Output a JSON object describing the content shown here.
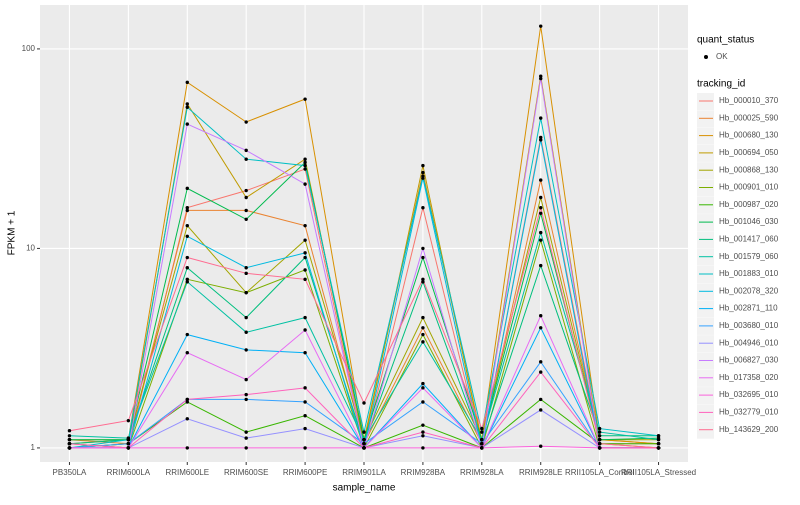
{
  "chart_data": {
    "type": "line",
    "log_y": true,
    "grid": true,
    "x_label": "sample_name",
    "y_label": "FPKM + 1",
    "categories": [
      "PB350LA",
      "RRIM600LA",
      "RRIM600LE",
      "RRIM600SE",
      "RRIM600PE",
      "RRIM901LA",
      "RRIM928BA",
      "RRIM928LA",
      "RRIM928LE",
      "RRII105LA_Control",
      "RRII105LA_Stressed"
    ],
    "ylim": [
      0.85,
      166
    ],
    "yticks": [
      1,
      10,
      100
    ],
    "point_legend_title": "quant_status",
    "point_legend_label": "OK",
    "legend_title": "tracking_id",
    "series": [
      {
        "name": "Hb_000010_370",
        "color": "#F8766D",
        "values": [
          1.05,
          1.0,
          16,
          19.5,
          25,
          1.0,
          16,
          1.0,
          36,
          1.05,
          1.05
        ]
      },
      {
        "name": "Hb_000025_590",
        "color": "#EA8331",
        "values": [
          1.1,
          1.05,
          15.5,
          15.5,
          13,
          1.05,
          4.0,
          1.05,
          22,
          1.1,
          1.05
        ]
      },
      {
        "name": "Hb_000680_130",
        "color": "#D89000",
        "values": [
          1.05,
          1.1,
          68,
          43,
          56,
          1.1,
          24,
          1.1,
          130,
          1.1,
          1.05
        ]
      },
      {
        "name": "Hb_000694_050",
        "color": "#C09B00",
        "values": [
          1.0,
          1.05,
          53,
          18,
          28,
          1.05,
          26,
          1.05,
          73,
          1.05,
          1.0
        ]
      },
      {
        "name": "Hb_000868_130",
        "color": "#A3A500",
        "values": [
          1.1,
          1.1,
          13,
          6,
          11,
          1.1,
          4.5,
          1.1,
          18,
          1.1,
          1.1
        ]
      },
      {
        "name": "Hb_000901_010",
        "color": "#7CAE00",
        "values": [
          1.05,
          1.0,
          7,
          6,
          7.8,
          1.0,
          3.7,
          1.0,
          11,
          1.0,
          1.0
        ]
      },
      {
        "name": "Hb_000987_020",
        "color": "#39B600",
        "values": [
          1.0,
          1.05,
          1.7,
          1.2,
          1.45,
          1.0,
          1.3,
          1.0,
          1.75,
          1.05,
          1.05
        ]
      },
      {
        "name": "Hb_001046_030",
        "color": "#00BB4E",
        "values": [
          1.1,
          1.1,
          20,
          14,
          27,
          1.1,
          9,
          1.1,
          15,
          1.1,
          1.12
        ]
      },
      {
        "name": "Hb_001417_060",
        "color": "#00BF7D",
        "values": [
          1.05,
          1.1,
          8,
          4.5,
          9,
          1.05,
          6.8,
          1.05,
          8.2,
          1.15,
          1.15
        ]
      },
      {
        "name": "Hb_001579_060",
        "color": "#00C1A3",
        "values": [
          1.15,
          1.12,
          6.8,
          3.8,
          4.5,
          1.1,
          3.4,
          1.1,
          12,
          1.2,
          1.1
        ]
      },
      {
        "name": "Hb_001883_010",
        "color": "#00BFC4",
        "values": [
          1.0,
          1.1,
          51,
          28,
          26,
          1.2,
          23,
          1.2,
          45,
          1.25,
          1.15
        ]
      },
      {
        "name": "Hb_002078_320",
        "color": "#00BAE0",
        "values": [
          1.0,
          1.0,
          11.5,
          8,
          9.5,
          1.0,
          22.5,
          1.0,
          35,
          1.0,
          1.0
        ]
      },
      {
        "name": "Hb_002871_110",
        "color": "#00B0F6",
        "values": [
          1.0,
          1.0,
          3.7,
          3.1,
          3.0,
          1.0,
          2.1,
          1.0,
          4.0,
          1.0,
          1.0
        ]
      },
      {
        "name": "Hb_003680_010",
        "color": "#35A2FF",
        "values": [
          1.0,
          1.05,
          1.75,
          1.75,
          1.7,
          1.05,
          1.7,
          1.05,
          2.7,
          1.0,
          1.0
        ]
      },
      {
        "name": "Hb_004946_010",
        "color": "#9590FF",
        "values": [
          1.0,
          1.0,
          1.4,
          1.12,
          1.25,
          1.0,
          1.15,
          1.0,
          1.55,
          1.0,
          1.0
        ]
      },
      {
        "name": "Hb_006827_030",
        "color": "#C77CFF",
        "values": [
          1.0,
          1.0,
          42,
          31,
          21,
          1.0,
          10,
          1.0,
          71,
          1.0,
          1.0
        ]
      },
      {
        "name": "Hb_017358_020",
        "color": "#E76BF3",
        "values": [
          1.0,
          1.0,
          3.0,
          2.2,
          3.9,
          1.0,
          2.0,
          1.0,
          4.6,
          1.0,
          1.0
        ]
      },
      {
        "name": "Hb_032695_010",
        "color": "#FA62DB",
        "values": [
          1.0,
          1.0,
          1.0,
          1.0,
          1.0,
          1.0,
          1.0,
          1.0,
          1.02,
          1.0,
          1.0
        ]
      },
      {
        "name": "Hb_032779_010",
        "color": "#FF62BC",
        "values": [
          1.05,
          1.0,
          1.75,
          1.85,
          2.0,
          1.0,
          1.2,
          1.0,
          2.4,
          1.0,
          1.0
        ]
      },
      {
        "name": "Hb_143629_200",
        "color": "#FF6C91",
        "values": [
          1.22,
          1.37,
          9,
          7.5,
          7,
          1.68,
          7,
          1.25,
          16,
          1.05,
          1.0
        ]
      }
    ]
  }
}
